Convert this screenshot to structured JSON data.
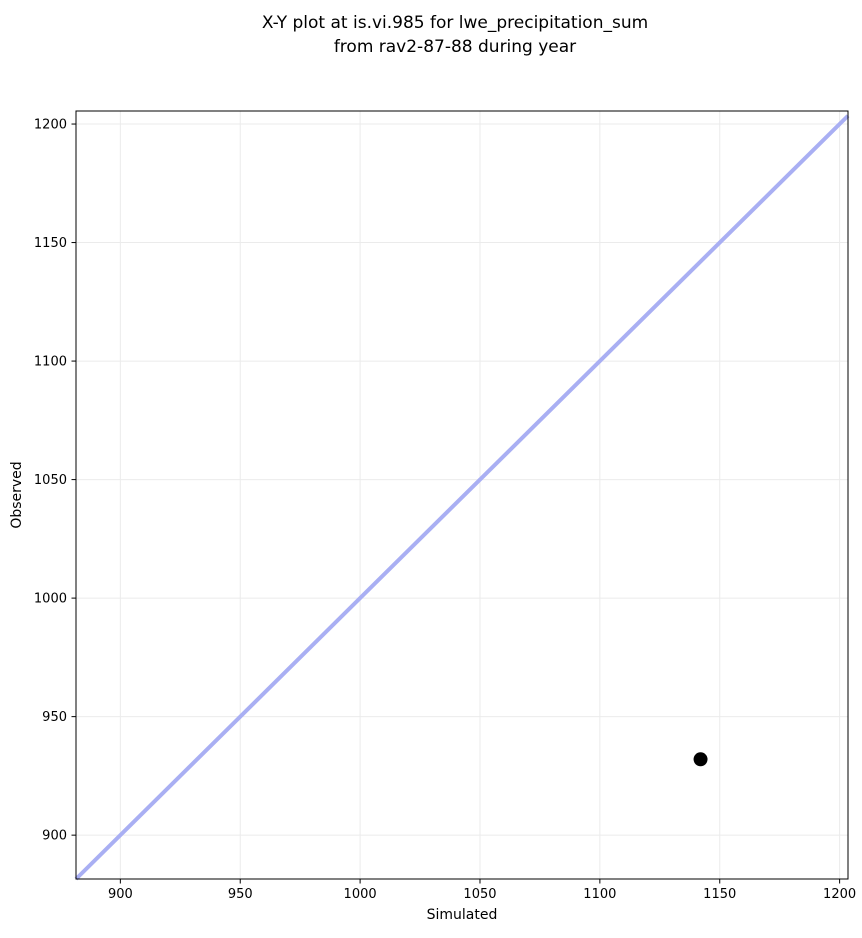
{
  "chart_data": {
    "type": "scatter",
    "title_lines": [
      "X-Y plot at is.vi.985 for lwe_precipitation_sum",
      "from rav2-87-88 during year"
    ],
    "xlabel": "Simulated",
    "ylabel": "Observed",
    "xlim": [
      881.5,
      1203.5
    ],
    "ylim": [
      881.5,
      1205.5
    ],
    "xticks": [
      900,
      950,
      1000,
      1050,
      1100,
      1150,
      1200
    ],
    "yticks": [
      900,
      950,
      1000,
      1050,
      1100,
      1150,
      1200
    ],
    "grid": true,
    "legend": false,
    "series": [
      {
        "name": "identity_line",
        "type": "line",
        "color": "#a9aff3",
        "stroke_width": 4,
        "points": [
          [
            881.5,
            881.5
          ],
          [
            1203.5,
            1203.5
          ]
        ]
      },
      {
        "name": "observations",
        "type": "scatter",
        "color": "#000000",
        "marker_radius": 7,
        "points": [
          [
            1142,
            932
          ]
        ]
      }
    ],
    "colors": {
      "background": "#ffffff",
      "grid": "#ebebeb",
      "spine": "#000000",
      "tick": "#000000",
      "text": "#000000"
    }
  }
}
